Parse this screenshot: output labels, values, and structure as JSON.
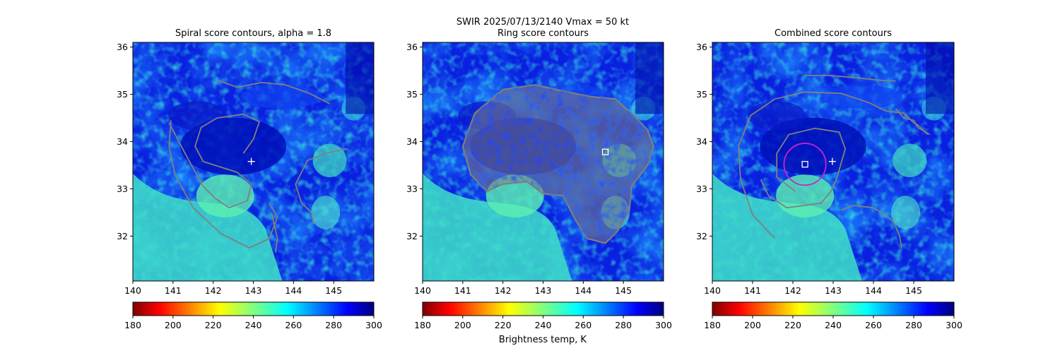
{
  "figure": {
    "suptitle_line1": "SWIR  2025/07/13/2140    Vmax = 50 kt",
    "colorbar_label": "Brightness temp, K"
  },
  "chart_data": [
    {
      "type": "heatmap",
      "title": "Spiral score contours, alpha =  1.8",
      "xlim": [
        140,
        146
      ],
      "ylim": [
        31.05,
        36.1
      ],
      "xticks": [
        140,
        141,
        142,
        143,
        144,
        145
      ],
      "yticks": [
        32,
        33,
        34,
        35,
        36
      ],
      "colorbar": {
        "min": 180,
        "max": 300,
        "ticks": [
          180,
          200,
          220,
          240,
          260,
          280,
          300
        ],
        "cmap": "jet_r"
      },
      "markers": [
        {
          "type": "plus",
          "lon": 142.95,
          "lat": 33.58,
          "color": "#ffffff"
        }
      ],
      "contour_color": "#808080",
      "contours": [
        [
          [
            142.1,
            35.3
          ],
          [
            142.6,
            35.15
          ],
          [
            143.2,
            35.25
          ],
          [
            143.8,
            35.2
          ],
          [
            144.4,
            35.02
          ],
          [
            144.9,
            34.8
          ]
        ],
        [
          [
            140.9,
            34.4
          ],
          [
            141.3,
            33.75
          ],
          [
            141.75,
            33.05
          ],
          [
            142.05,
            32.8
          ],
          [
            142.4,
            32.6
          ],
          [
            142.85,
            32.75
          ],
          [
            142.95,
            33.1
          ],
          [
            142.6,
            33.35
          ],
          [
            141.75,
            33.58
          ],
          [
            141.55,
            33.9
          ],
          [
            141.7,
            34.3
          ],
          [
            142.1,
            34.5
          ],
          [
            142.75,
            34.58
          ],
          [
            143.15,
            34.42
          ],
          [
            143.0,
            34.05
          ],
          [
            142.75,
            33.75
          ]
        ],
        [
          [
            140.95,
            34.45
          ],
          [
            140.9,
            33.9
          ],
          [
            141.05,
            33.3
          ],
          [
            141.5,
            32.6
          ],
          [
            142.2,
            32.05
          ],
          [
            142.9,
            31.75
          ],
          [
            143.4,
            31.95
          ],
          [
            143.6,
            32.4
          ],
          [
            143.4,
            32.7
          ]
        ],
        [
          [
            143.45,
            32.5
          ],
          [
            143.6,
            31.95
          ],
          [
            143.55,
            31.65
          ]
        ],
        [
          [
            145.35,
            33.85
          ],
          [
            144.8,
            33.75
          ],
          [
            144.35,
            33.6
          ],
          [
            144.05,
            33.1
          ],
          [
            144.2,
            32.7
          ],
          [
            144.45,
            32.5
          ],
          [
            144.5,
            32.25
          ]
        ]
      ]
    },
    {
      "type": "heatmap",
      "title": "Ring score contours",
      "xlim": [
        140,
        146
      ],
      "ylim": [
        31.05,
        36.1
      ],
      "xticks": [
        140,
        141,
        142,
        143,
        144,
        145
      ],
      "yticks": [
        32,
        33,
        34,
        35,
        36
      ],
      "colorbar": {
        "min": 180,
        "max": 300,
        "ticks": [
          180,
          200,
          220,
          240,
          260,
          280,
          300
        ],
        "cmap": "jet_r"
      },
      "markers": [
        {
          "type": "square",
          "lon": 144.55,
          "lat": 33.78,
          "color": "#ffffff"
        }
      ],
      "contour_color": "#808080",
      "contours": [
        [
          [
            141.0,
            33.9
          ],
          [
            141.3,
            34.6
          ],
          [
            142.0,
            35.1
          ],
          [
            142.8,
            35.2
          ],
          [
            143.6,
            35.05
          ],
          [
            144.2,
            34.95
          ],
          [
            144.8,
            34.9
          ],
          [
            145.2,
            34.6
          ],
          [
            145.6,
            34.25
          ],
          [
            145.75,
            33.9
          ],
          [
            145.6,
            33.5
          ],
          [
            145.2,
            33.05
          ],
          [
            145.15,
            32.55
          ],
          [
            144.85,
            32.1
          ],
          [
            144.55,
            31.85
          ],
          [
            144.1,
            31.95
          ],
          [
            143.8,
            32.35
          ],
          [
            143.5,
            32.85
          ],
          [
            143.0,
            32.9
          ],
          [
            142.6,
            33.15
          ],
          [
            142.0,
            33.1
          ],
          [
            141.6,
            32.95
          ],
          [
            141.2,
            33.3
          ],
          [
            141.0,
            33.9
          ]
        ]
      ],
      "contour_fill": true
    },
    {
      "type": "heatmap",
      "title": "Combined score contours",
      "xlim": [
        140,
        146
      ],
      "ylim": [
        31.05,
        36.1
      ],
      "xticks": [
        140,
        141,
        142,
        143,
        144,
        145
      ],
      "yticks": [
        32,
        33,
        34,
        35,
        36
      ],
      "colorbar": {
        "min": 180,
        "max": 300,
        "ticks": [
          180,
          200,
          220,
          240,
          260,
          280,
          300
        ],
        "cmap": "jet_r"
      },
      "markers": [
        {
          "type": "plus",
          "lon": 142.98,
          "lat": 33.58,
          "color": "#ffffff"
        },
        {
          "type": "square",
          "lon": 142.3,
          "lat": 33.52,
          "color": "#ffffff"
        },
        {
          "type": "circle",
          "lon": 142.3,
          "lat": 33.52,
          "radius_deg": 0.52,
          "color": "#cc22cc"
        }
      ],
      "contour_color": "#808080",
      "contours": [
        [
          [
            142.3,
            35.4
          ],
          [
            142.9,
            35.4
          ],
          [
            143.6,
            35.35
          ],
          [
            144.1,
            35.3
          ],
          [
            144.55,
            35.28
          ]
        ],
        [
          [
            141.55,
            31.95
          ],
          [
            141.0,
            32.45
          ],
          [
            140.7,
            33.2
          ],
          [
            140.65,
            33.9
          ],
          [
            140.95,
            34.55
          ],
          [
            141.55,
            34.9
          ],
          [
            142.3,
            35.05
          ],
          [
            143.2,
            35.02
          ],
          [
            143.9,
            34.82
          ],
          [
            144.3,
            34.65
          ],
          [
            144.75,
            34.6
          ],
          [
            145.0,
            34.4
          ],
          [
            145.1,
            34.35
          ],
          [
            145.35,
            34.15
          ]
        ],
        [
          [
            142.05,
            32.95
          ],
          [
            141.6,
            33.25
          ],
          [
            141.6,
            33.75
          ],
          [
            141.9,
            34.15
          ],
          [
            142.55,
            34.28
          ],
          [
            143.15,
            34.2
          ],
          [
            143.3,
            33.85
          ],
          [
            143.1,
            33.25
          ],
          [
            142.95,
            32.95
          ],
          [
            142.7,
            32.7
          ],
          [
            142.3,
            32.65
          ],
          [
            141.85,
            32.6
          ],
          [
            141.4,
            32.85
          ]
        ],
        [
          [
            141.4,
            32.85
          ],
          [
            141.2,
            33.2
          ]
        ],
        [
          [
            143.2,
            32.55
          ],
          [
            143.5,
            32.65
          ],
          [
            144.0,
            32.6
          ],
          [
            144.3,
            32.45
          ],
          [
            144.5,
            32.3
          ],
          [
            144.65,
            32.0
          ],
          [
            144.7,
            31.75
          ]
        ],
        [
          [
            144.55,
            34.7
          ],
          [
            144.75,
            34.5
          ],
          [
            145.0,
            34.45
          ],
          [
            145.1,
            34.3
          ],
          [
            145.4,
            34.15
          ]
        ]
      ]
    }
  ]
}
